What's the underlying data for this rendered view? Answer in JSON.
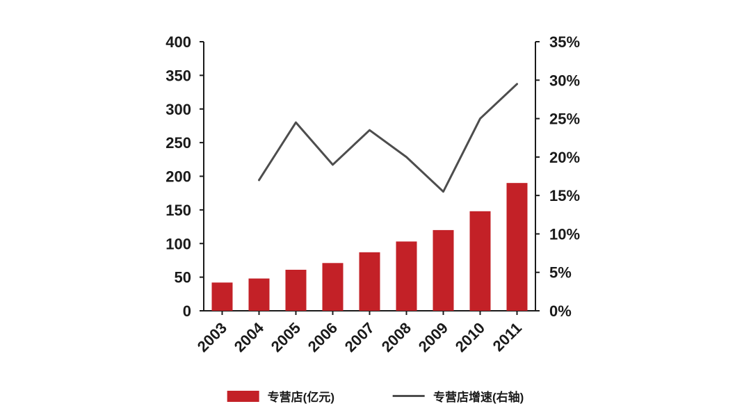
{
  "chart_data": {
    "type": "bar+line",
    "title": "",
    "categories": [
      "2003",
      "2004",
      "2005",
      "2006",
      "2007",
      "2008",
      "2009",
      "2010",
      "2011"
    ],
    "series": [
      {
        "name": "专营店(亿元)",
        "type": "bar",
        "axis": "left",
        "color": "#c32127",
        "values": [
          42,
          48,
          61,
          71,
          87,
          103,
          120,
          148,
          190
        ]
      },
      {
        "name": "专营店增速(右轴)",
        "type": "line",
        "axis": "right",
        "color": "#4d4d4d",
        "values": [
          null,
          17,
          24.5,
          19,
          23.5,
          20,
          15.5,
          25,
          29.5
        ]
      }
    ],
    "left_axis": {
      "min": 0,
      "max": 400,
      "step": 50,
      "ticks": [
        "0",
        "50",
        "100",
        "150",
        "200",
        "250",
        "300",
        "350",
        "400"
      ]
    },
    "right_axis": {
      "min": 0,
      "max": 35,
      "step": 5,
      "ticks": [
        "0%",
        "5%",
        "10%",
        "15%",
        "20%",
        "25%",
        "30%",
        "35%"
      ]
    },
    "legend": {
      "bar_label": "专营店(亿元)",
      "line_label": "专营店增速(右轴)"
    },
    "layout": {
      "grid": false,
      "legend_position": "bottom"
    }
  }
}
